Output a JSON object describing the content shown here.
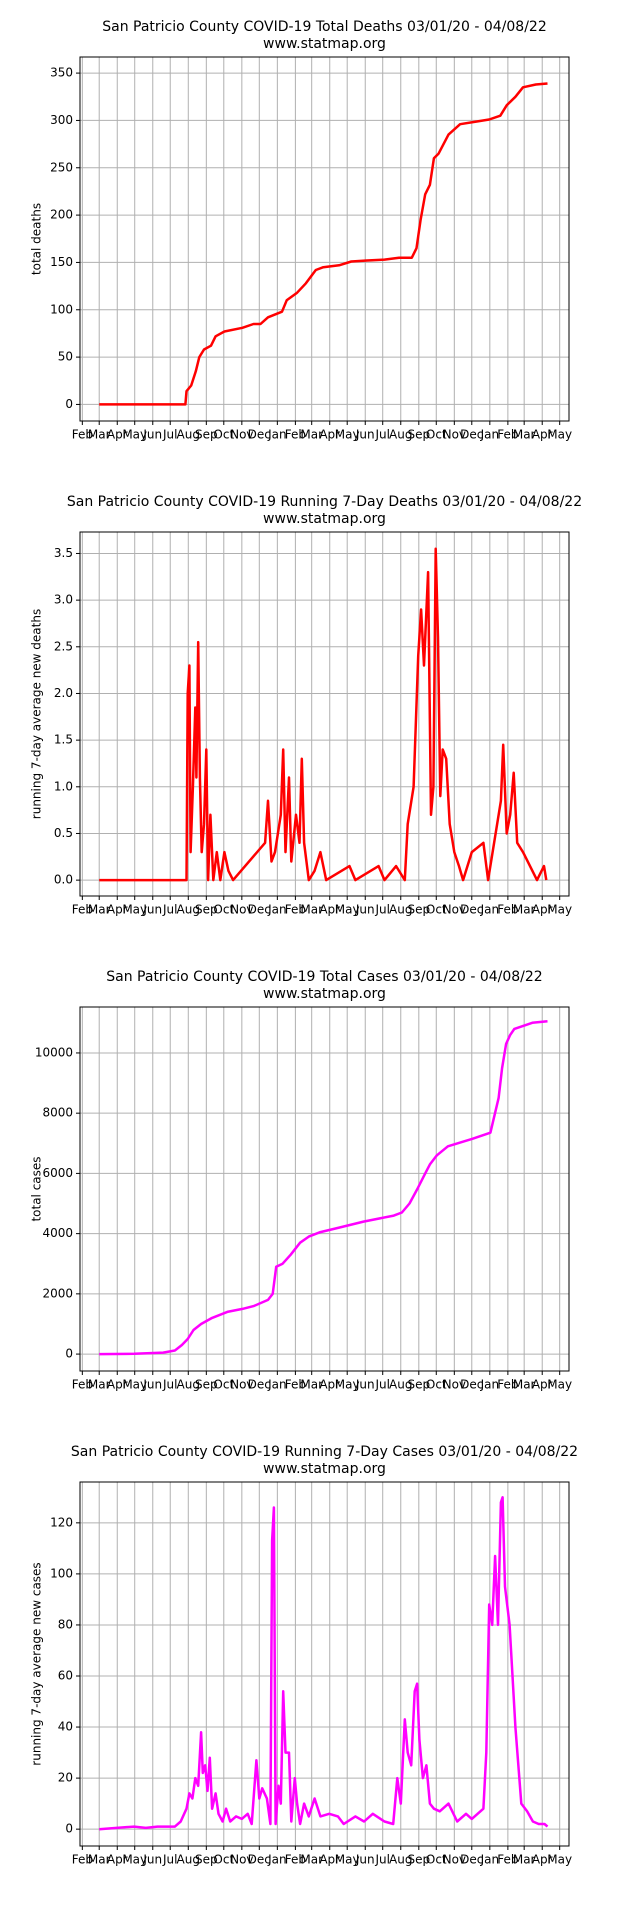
{
  "chart_data": [
    {
      "type": "line",
      "title": "San Patricio County COVID-19 Total Deaths 03/01/20 - 04/08/22",
      "subtitle": "www.statmap.org",
      "ylabel": "total deaths",
      "color": "#ff0000",
      "grid": true,
      "xlim": [
        -33,
        807
      ],
      "ylim": [
        -17.5,
        367
      ],
      "xticks": [
        {
          "value": -29,
          "label": "Feb"
        },
        {
          "value": 0,
          "label": "Mar"
        },
        {
          "value": 31,
          "label": "Apr"
        },
        {
          "value": 61,
          "label": "May"
        },
        {
          "value": 92,
          "label": "Jun"
        },
        {
          "value": 122,
          "label": "Jul"
        },
        {
          "value": 153,
          "label": "Aug"
        },
        {
          "value": 184,
          "label": "Sep"
        },
        {
          "value": 214,
          "label": "Oct"
        },
        {
          "value": 245,
          "label": "Nov"
        },
        {
          "value": 275,
          "label": "Dec"
        },
        {
          "value": 306,
          "label": "Jan"
        },
        {
          "value": 337,
          "label": "Feb"
        },
        {
          "value": 365,
          "label": "Mar"
        },
        {
          "value": 396,
          "label": "Apr"
        },
        {
          "value": 426,
          "label": "May"
        },
        {
          "value": 457,
          "label": "Jun"
        },
        {
          "value": 487,
          "label": "Jul"
        },
        {
          "value": 518,
          "label": "Aug"
        },
        {
          "value": 549,
          "label": "Sep"
        },
        {
          "value": 579,
          "label": "Oct"
        },
        {
          "value": 610,
          "label": "Nov"
        },
        {
          "value": 640,
          "label": "Dec"
        },
        {
          "value": 671,
          "label": "Jan"
        },
        {
          "value": 702,
          "label": "Feb"
        },
        {
          "value": 730,
          "label": "Mar"
        },
        {
          "value": 761,
          "label": "Apr"
        },
        {
          "value": 791,
          "label": "May"
        }
      ],
      "yticks": [
        0,
        50,
        100,
        150,
        200,
        250,
        300,
        350
      ],
      "x": [
        0,
        148,
        150,
        158,
        166,
        172,
        180,
        192,
        200,
        215,
        246,
        265,
        277,
        290,
        314,
        322,
        340,
        355,
        372,
        385,
        412,
        433,
        460,
        490,
        515,
        537,
        545,
        552,
        560,
        568,
        575,
        583,
        600,
        620,
        650,
        670,
        689,
        700,
        715,
        728,
        750,
        770
      ],
      "values": [
        0,
        0,
        14,
        20,
        35,
        50,
        58,
        62,
        72,
        77,
        81,
        85,
        85,
        92,
        98,
        110,
        118,
        128,
        142,
        145,
        147,
        151,
        152,
        153,
        155,
        155,
        165,
        195,
        222,
        232,
        260,
        265,
        285,
        296,
        299,
        301,
        305,
        316,
        325,
        335,
        338,
        339
      ]
    },
    {
      "type": "line",
      "title": "San Patricio County COVID-19 Running 7-Day Deaths 03/01/20 - 04/08/22",
      "subtitle": "www.statmap.org",
      "ylabel": "running 7-day average new deaths",
      "color": "#ff0000",
      "grid": true,
      "xlim": [
        -33,
        807
      ],
      "ylim": [
        -0.17,
        3.73
      ],
      "xticks": [
        {
          "value": -29,
          "label": "Feb"
        },
        {
          "value": 0,
          "label": "Mar"
        },
        {
          "value": 31,
          "label": "Apr"
        },
        {
          "value": 61,
          "label": "May"
        },
        {
          "value": 92,
          "label": "Jun"
        },
        {
          "value": 122,
          "label": "Jul"
        },
        {
          "value": 153,
          "label": "Aug"
        },
        {
          "value": 184,
          "label": "Sep"
        },
        {
          "value": 214,
          "label": "Oct"
        },
        {
          "value": 245,
          "label": "Nov"
        },
        {
          "value": 275,
          "label": "Dec"
        },
        {
          "value": 306,
          "label": "Jan"
        },
        {
          "value": 337,
          "label": "Feb"
        },
        {
          "value": 365,
          "label": "Mar"
        },
        {
          "value": 396,
          "label": "Apr"
        },
        {
          "value": 426,
          "label": "May"
        },
        {
          "value": 457,
          "label": "Jun"
        },
        {
          "value": 487,
          "label": "Jul"
        },
        {
          "value": 518,
          "label": "Aug"
        },
        {
          "value": 549,
          "label": "Sep"
        },
        {
          "value": 579,
          "label": "Oct"
        },
        {
          "value": 610,
          "label": "Nov"
        },
        {
          "value": 640,
          "label": "Dec"
        },
        {
          "value": 671,
          "label": "Jan"
        },
        {
          "value": 702,
          "label": "Feb"
        },
        {
          "value": 730,
          "label": "Mar"
        },
        {
          "value": 761,
          "label": "Apr"
        },
        {
          "value": 791,
          "label": "May"
        }
      ],
      "yticks": [
        {
          "value": 0,
          "label": "0.0"
        },
        0.5,
        {
          "value": 1,
          "label": "1.0"
        },
        1.5,
        {
          "value": 2,
          "label": "2.0"
        },
        2.5,
        {
          "value": 3,
          "label": "3.0"
        },
        3.5
      ],
      "x": [
        0,
        150,
        152,
        155,
        157,
        161,
        165,
        167,
        170,
        173,
        176,
        180,
        184,
        187,
        191,
        196,
        202,
        208,
        215,
        222,
        230,
        285,
        290,
        296,
        302,
        312,
        316,
        320,
        326,
        330,
        338,
        344,
        348,
        352,
        360,
        370,
        380,
        390,
        430,
        440,
        480,
        490,
        510,
        525,
        530,
        540,
        548,
        553,
        558,
        565,
        570,
        574,
        578,
        582,
        586,
        590,
        596,
        602,
        610,
        618,
        625,
        640,
        660,
        668,
        690,
        694,
        700,
        706,
        712,
        718,
        728,
        740,
        752,
        764,
        768
      ],
      "values": [
        0,
        0,
        2.0,
        2.3,
        0.3,
        1.0,
        1.85,
        1.1,
        2.55,
        1.1,
        0.3,
        0.6,
        1.4,
        0,
        0.7,
        0,
        0.3,
        0,
        0.3,
        0.1,
        0,
        0.4,
        0.85,
        0.2,
        0.3,
        0.7,
        1.4,
        0.3,
        1.1,
        0.2,
        0.7,
        0.4,
        1.3,
        0.4,
        0,
        0.1,
        0.3,
        0,
        0.15,
        0,
        0.15,
        0,
        0.15,
        0,
        0.6,
        1.0,
        2.4,
        2.9,
        2.3,
        3.3,
        0.7,
        1.0,
        3.55,
        2.6,
        0.9,
        1.4,
        1.3,
        0.6,
        0.3,
        0.15,
        0,
        0.3,
        0.4,
        0,
        0.85,
        1.45,
        0.5,
        0.7,
        1.15,
        0.4,
        0.3,
        0.15,
        0,
        0.15,
        0
      ]
    },
    {
      "type": "line",
      "title": "San Patricio County COVID-19 Total Cases 03/01/20 - 04/08/22",
      "subtitle": "www.statmap.org",
      "ylabel": "total cases",
      "color": "#ff00ff",
      "grid": true,
      "xlim": [
        -33,
        807
      ],
      "ylim": [
        -562,
        11526
      ],
      "xticks": [
        {
          "value": -29,
          "label": "Feb"
        },
        {
          "value": 0,
          "label": "Mar"
        },
        {
          "value": 31,
          "label": "Apr"
        },
        {
          "value": 61,
          "label": "May"
        },
        {
          "value": 92,
          "label": "Jun"
        },
        {
          "value": 122,
          "label": "Jul"
        },
        {
          "value": 153,
          "label": "Aug"
        },
        {
          "value": 184,
          "label": "Sep"
        },
        {
          "value": 214,
          "label": "Oct"
        },
        {
          "value": 245,
          "label": "Nov"
        },
        {
          "value": 275,
          "label": "Dec"
        },
        {
          "value": 306,
          "label": "Jan"
        },
        {
          "value": 337,
          "label": "Feb"
        },
        {
          "value": 365,
          "label": "Mar"
        },
        {
          "value": 396,
          "label": "Apr"
        },
        {
          "value": 426,
          "label": "May"
        },
        {
          "value": 457,
          "label": "Jun"
        },
        {
          "value": 487,
          "label": "Jul"
        },
        {
          "value": 518,
          "label": "Aug"
        },
        {
          "value": 549,
          "label": "Sep"
        },
        {
          "value": 579,
          "label": "Oct"
        },
        {
          "value": 610,
          "label": "Nov"
        },
        {
          "value": 640,
          "label": "Dec"
        },
        {
          "value": 671,
          "label": "Jan"
        },
        {
          "value": 702,
          "label": "Feb"
        },
        {
          "value": 730,
          "label": "Mar"
        },
        {
          "value": 761,
          "label": "Apr"
        },
        {
          "value": 791,
          "label": "May"
        }
      ],
      "yticks": [
        0,
        2000,
        4000,
        6000,
        8000,
        10000
      ],
      "x": [
        0,
        60,
        110,
        130,
        142,
        152,
        162,
        175,
        194,
        220,
        246,
        266,
        290,
        298,
        304,
        315,
        329,
        345,
        360,
        380,
        412,
        454,
        506,
        520,
        533,
        547,
        560,
        568,
        580,
        599,
        641,
        672,
        686,
        692,
        699,
        706,
        713,
        744,
        770
      ],
      "values": [
        0,
        10,
        50,
        120,
        300,
        500,
        800,
        1000,
        1200,
        1400,
        1500,
        1600,
        1800,
        2000,
        2900,
        3000,
        3300,
        3700,
        3900,
        4050,
        4200,
        4400,
        4600,
        4700,
        5000,
        5500,
        6000,
        6300,
        6600,
        6900,
        7150,
        7350,
        8500,
        9500,
        10300,
        10600,
        10800,
        11000,
        11050
      ]
    },
    {
      "type": "line",
      "title": "San Patricio County COVID-19 Running 7-Day Cases 03/01/20 - 04/08/22",
      "subtitle": "www.statmap.org",
      "ylabel": "running 7-day average new cases",
      "color": "#ff00ff",
      "grid": true,
      "xlim": [
        -33,
        807
      ],
      "ylim": [
        -6.6,
        136
      ],
      "xticks": [
        {
          "value": -29,
          "label": "Feb"
        },
        {
          "value": 0,
          "label": "Mar"
        },
        {
          "value": 31,
          "label": "Apr"
        },
        {
          "value": 61,
          "label": "May"
        },
        {
          "value": 92,
          "label": "Jun"
        },
        {
          "value": 122,
          "label": "Jul"
        },
        {
          "value": 153,
          "label": "Aug"
        },
        {
          "value": 184,
          "label": "Sep"
        },
        {
          "value": 214,
          "label": "Oct"
        },
        {
          "value": 245,
          "label": "Nov"
        },
        {
          "value": 275,
          "label": "Dec"
        },
        {
          "value": 306,
          "label": "Jan"
        },
        {
          "value": 337,
          "label": "Feb"
        },
        {
          "value": 365,
          "label": "Mar"
        },
        {
          "value": 396,
          "label": "Apr"
        },
        {
          "value": 426,
          "label": "May"
        },
        {
          "value": 457,
          "label": "Jun"
        },
        {
          "value": 487,
          "label": "Jul"
        },
        {
          "value": 518,
          "label": "Aug"
        },
        {
          "value": 549,
          "label": "Sep"
        },
        {
          "value": 579,
          "label": "Oct"
        },
        {
          "value": 610,
          "label": "Nov"
        },
        {
          "value": 640,
          "label": "Dec"
        },
        {
          "value": 671,
          "label": "Jan"
        },
        {
          "value": 702,
          "label": "Feb"
        },
        {
          "value": 730,
          "label": "Mar"
        },
        {
          "value": 761,
          "label": "Apr"
        },
        {
          "value": 791,
          "label": "May"
        }
      ],
      "yticks": [
        0,
        20,
        40,
        60,
        80,
        100,
        120
      ],
      "x": [
        0,
        30,
        60,
        80,
        100,
        130,
        140,
        150,
        155,
        160,
        165,
        170,
        175,
        178,
        182,
        186,
        190,
        194,
        200,
        205,
        212,
        218,
        225,
        235,
        245,
        255,
        262,
        270,
        275,
        280,
        288,
        294,
        297,
        300,
        303,
        308,
        312,
        316,
        320,
        326,
        330,
        336,
        340,
        345,
        352,
        360,
        370,
        380,
        395,
        410,
        420,
        440,
        455,
        470,
        490,
        505,
        512,
        518,
        525,
        530,
        536,
        542,
        546,
        550,
        556,
        562,
        568,
        575,
        585,
        600,
        615,
        630,
        640,
        660,
        665,
        670,
        675,
        680,
        685,
        690,
        693,
        697,
        705,
        715,
        725,
        735,
        745,
        755,
        765,
        770
      ],
      "values": [
        0,
        0.5,
        1,
        0.5,
        1,
        1,
        3,
        8,
        14,
        12,
        20,
        17,
        38,
        22,
        25,
        15,
        28,
        8,
        14,
        6,
        3,
        8,
        3,
        5,
        4,
        6,
        2,
        27,
        12,
        16,
        12,
        2,
        113,
        126,
        2,
        17,
        10,
        54,
        30,
        30,
        3,
        20,
        10,
        2,
        10,
        5,
        12,
        5,
        6,
        5,
        2,
        5,
        3,
        6,
        3,
        2,
        20,
        10,
        43,
        30,
        25,
        54,
        57,
        35,
        20,
        25,
        10,
        8,
        7,
        10,
        3,
        6,
        4,
        8,
        30,
        88,
        80,
        107,
        80,
        128,
        130,
        95,
        80,
        40,
        10,
        7,
        3,
        2,
        2,
        1
      ]
    }
  ]
}
